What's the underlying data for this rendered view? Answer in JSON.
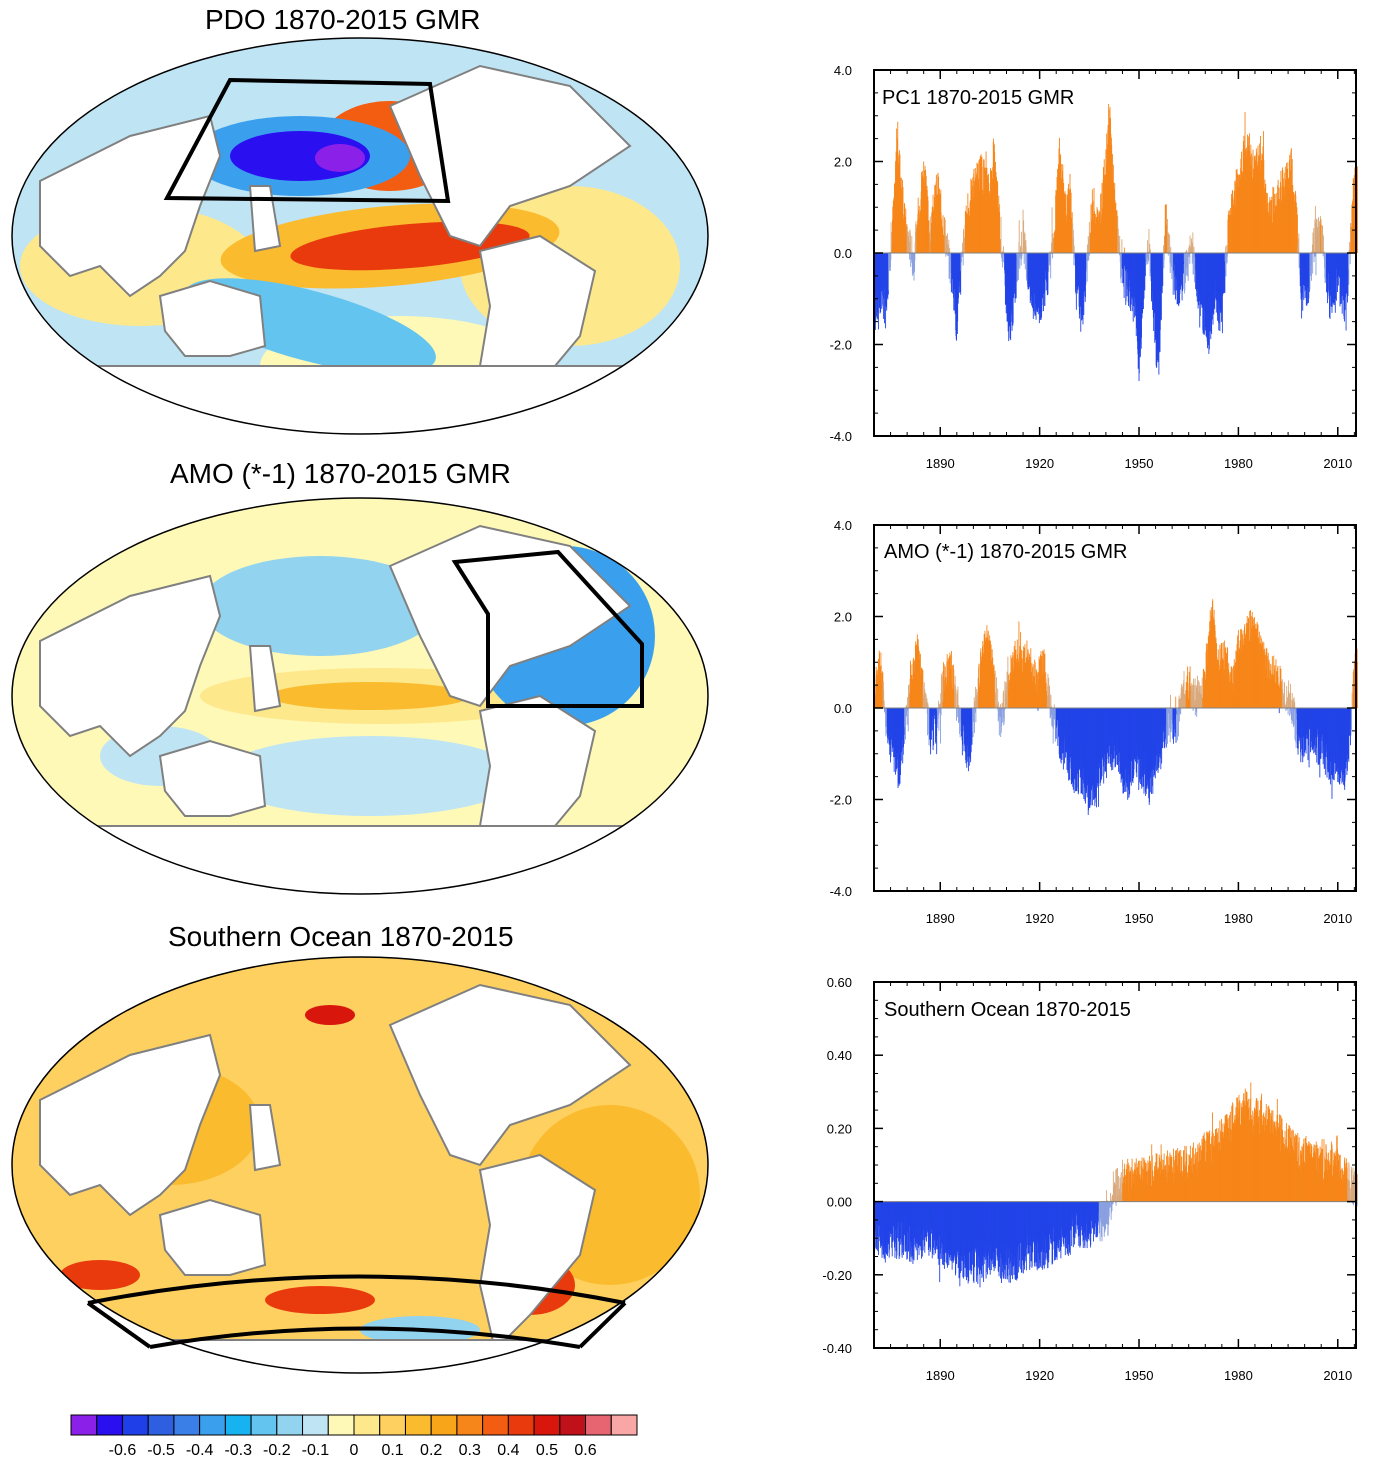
{
  "figure": {
    "maps": [
      {
        "title": "PDO 1870-2015 GMR",
        "region": "North Pacific box"
      },
      {
        "title": "AMO (*-1) 1870-2015 GMR",
        "region": "North Atlantic box"
      },
      {
        "title": "Southern Ocean 1870-2015",
        "region": "Southern Ocean band"
      }
    ],
    "colorbar": {
      "labels": [
        "-0.6",
        "-0.5",
        "-0.4",
        "-0.3",
        "-0.2",
        "-0.1",
        "0",
        "0.1",
        "0.2",
        "0.3",
        "0.4",
        "0.5",
        "0.6"
      ],
      "colors": [
        "#8b20e8",
        "#2a10f0",
        "#1f3fe8",
        "#2e5fe0",
        "#3a7ee8",
        "#3aa0ee",
        "#17b2f0",
        "#64c4f0",
        "#92d3f0",
        "#bfe4f4",
        "#fff9b8",
        "#fde88c",
        "#fdd060",
        "#fbbb2e",
        "#f9a51a",
        "#f7861a",
        "#f25d12",
        "#e93a0e",
        "#d8160c",
        "#c0101a",
        "#e76570",
        "#f8a6a6"
      ]
    },
    "colors": {
      "positive": "#f7861a",
      "negative": "#2244e8",
      "positive_thin": "#d9a97c",
      "negative_thin": "#8aa0e0",
      "land": "#ffffff",
      "coast": "#808080"
    }
  },
  "chart_data": [
    {
      "type": "bar",
      "title": "PC1 1870-2015 GMR",
      "x_start": 1870,
      "x_end": 2015,
      "step": "monthly",
      "xticks": [
        "1890",
        "1920",
        "1950",
        "1980",
        "2010"
      ],
      "yticks": [
        "4.0",
        "2.0",
        "0.0",
        "-2.0",
        "-4.0"
      ],
      "ylim": [
        -4.0,
        4.0
      ],
      "anchors": [
        [
          1870,
          -1.3
        ],
        [
          1874,
          -0.8
        ],
        [
          1876,
          1.0
        ],
        [
          1877,
          2.6
        ],
        [
          1879,
          0.8
        ],
        [
          1882,
          -0.2
        ],
        [
          1884,
          1.3
        ],
        [
          1885,
          1.8
        ],
        [
          1887,
          0.4
        ],
        [
          1889,
          1.5
        ],
        [
          1892,
          0.2
        ],
        [
          1894,
          -0.8
        ],
        [
          1895,
          -1.6
        ],
        [
          1897,
          0.2
        ],
        [
          1899,
          1.2
        ],
        [
          1902,
          1.8
        ],
        [
          1905,
          1.3
        ],
        [
          1906,
          2.2
        ],
        [
          1908,
          0.7
        ],
        [
          1910,
          -1.0
        ],
        [
          1911,
          -1.8
        ],
        [
          1913,
          -0.5
        ],
        [
          1915,
          0.4
        ],
        [
          1917,
          -0.9
        ],
        [
          1920,
          -1.2
        ],
        [
          1923,
          -0.4
        ],
        [
          1925,
          1.0
        ],
        [
          1926,
          2.2
        ],
        [
          1928,
          0.8
        ],
        [
          1929,
          1.5
        ],
        [
          1931,
          -0.8
        ],
        [
          1933,
          -1.2
        ],
        [
          1934,
          -0.6
        ],
        [
          1936,
          1.1
        ],
        [
          1938,
          0.6
        ],
        [
          1940,
          2.0
        ],
        [
          1941,
          3.0
        ],
        [
          1943,
          0.9
        ],
        [
          1945,
          -0.6
        ],
        [
          1947,
          -0.8
        ],
        [
          1949,
          -1.3
        ],
        [
          1950,
          -2.6
        ],
        [
          1951,
          -1.2
        ],
        [
          1953,
          0.2
        ],
        [
          1955,
          -2.0
        ],
        [
          1956,
          -2.3
        ],
        [
          1958,
          0.8
        ],
        [
          1960,
          -0.4
        ],
        [
          1962,
          -0.8
        ],
        [
          1964,
          -0.4
        ],
        [
          1966,
          0.2
        ],
        [
          1968,
          -1.2
        ],
        [
          1970,
          -1.4
        ],
        [
          1971,
          -1.9
        ],
        [
          1973,
          -0.9
        ],
        [
          1975,
          -1.6
        ],
        [
          1977,
          0.7
        ],
        [
          1979,
          1.3
        ],
        [
          1981,
          2.0
        ],
        [
          1983,
          2.4
        ],
        [
          1984,
          1.8
        ],
        [
          1986,
          2.0
        ],
        [
          1987,
          2.2
        ],
        [
          1989,
          0.8
        ],
        [
          1991,
          1.1
        ],
        [
          1993,
          1.4
        ],
        [
          1995,
          1.6
        ],
        [
          1996,
          1.9
        ],
        [
          1998,
          0.4
        ],
        [
          1999,
          -1.0
        ],
        [
          2001,
          -0.8
        ],
        [
          2003,
          0.3
        ],
        [
          2005,
          0.5
        ],
        [
          2007,
          -0.8
        ],
        [
          2008,
          -1.2
        ],
        [
          2010,
          -0.5
        ],
        [
          2012,
          -1.2
        ],
        [
          2013,
          -0.8
        ],
        [
          2014,
          0.5
        ],
        [
          2015,
          1.6
        ]
      ]
    },
    {
      "type": "bar",
      "title": "AMO (*-1) 1870-2015 GMR",
      "x_start": 1870,
      "x_end": 2015,
      "step": "monthly",
      "xticks": [
        "1890",
        "1920",
        "1950",
        "1980",
        "2010"
      ],
      "yticks": [
        "4.0",
        "2.0",
        "0.0",
        "-2.0",
        "-4.0"
      ],
      "ylim": [
        -4.0,
        4.0
      ],
      "anchors": [
        [
          1870,
          0.4
        ],
        [
          1872,
          1.0
        ],
        [
          1874,
          -0.5
        ],
        [
          1876,
          -1.0
        ],
        [
          1878,
          -1.4
        ],
        [
          1879,
          -0.6
        ],
        [
          1881,
          0.6
        ],
        [
          1883,
          1.3
        ],
        [
          1885,
          0.4
        ],
        [
          1887,
          -0.6
        ],
        [
          1889,
          -0.5
        ],
        [
          1891,
          0.6
        ],
        [
          1893,
          1.0
        ],
        [
          1895,
          0.2
        ],
        [
          1897,
          -0.8
        ],
        [
          1899,
          -1.0
        ],
        [
          1900,
          -0.3
        ],
        [
          1902,
          0.8
        ],
        [
          1904,
          1.6
        ],
        [
          1906,
          0.8
        ],
        [
          1908,
          -0.3
        ],
        [
          1910,
          0.3
        ],
        [
          1912,
          1.0
        ],
        [
          1914,
          1.2
        ],
        [
          1917,
          1.0
        ],
        [
          1919,
          0.6
        ],
        [
          1921,
          1.0
        ],
        [
          1923,
          0.2
        ],
        [
          1925,
          -0.5
        ],
        [
          1927,
          -0.9
        ],
        [
          1929,
          -1.2
        ],
        [
          1931,
          -1.6
        ],
        [
          1933,
          -1.5
        ],
        [
          1935,
          -2.0
        ],
        [
          1937,
          -1.8
        ],
        [
          1939,
          -1.3
        ],
        [
          1941,
          -1.0
        ],
        [
          1943,
          -0.9
        ],
        [
          1945,
          -1.5
        ],
        [
          1947,
          -1.6
        ],
        [
          1949,
          -1.0
        ],
        [
          1951,
          -1.4
        ],
        [
          1953,
          -1.7
        ],
        [
          1955,
          -1.3
        ],
        [
          1957,
          -0.8
        ],
        [
          1959,
          -0.3
        ],
        [
          1961,
          -0.6
        ],
        [
          1963,
          0.3
        ],
        [
          1965,
          0.6
        ],
        [
          1967,
          0.2
        ],
        [
          1969,
          0.4
        ],
        [
          1971,
          1.3
        ],
        [
          1972,
          2.2
        ],
        [
          1974,
          1.0
        ],
        [
          1976,
          1.1
        ],
        [
          1978,
          0.5
        ],
        [
          1980,
          1.3
        ],
        [
          1982,
          1.5
        ],
        [
          1984,
          1.8
        ],
        [
          1986,
          1.4
        ],
        [
          1988,
          1.0
        ],
        [
          1990,
          0.8
        ],
        [
          1992,
          0.6
        ],
        [
          1994,
          0.4
        ],
        [
          1996,
          0.1
        ],
        [
          1998,
          -0.6
        ],
        [
          2000,
          -1.0
        ],
        [
          2002,
          -0.6
        ],
        [
          2004,
          -0.8
        ],
        [
          2006,
          -1.0
        ],
        [
          2008,
          -1.3
        ],
        [
          2010,
          -1.2
        ],
        [
          2012,
          -1.4
        ],
        [
          2014,
          -0.6
        ],
        [
          2015,
          0.9
        ]
      ]
    },
    {
      "type": "bar",
      "title": "Southern Ocean 1870-2015",
      "x_start": 1870,
      "x_end": 2015,
      "step": "monthly",
      "xticks": [
        "1890",
        "1920",
        "1950",
        "1980",
        "2010"
      ],
      "yticks": [
        "0.60",
        "0.40",
        "0.20",
        "0.00",
        "-0.20",
        "-0.40"
      ],
      "ylim": [
        -0.4,
        0.6
      ],
      "anchors": [
        [
          1870,
          -0.08
        ],
        [
          1874,
          -0.12
        ],
        [
          1878,
          -0.1
        ],
        [
          1882,
          -0.12
        ],
        [
          1886,
          -0.1
        ],
        [
          1890,
          -0.12
        ],
        [
          1894,
          -0.15
        ],
        [
          1898,
          -0.17
        ],
        [
          1902,
          -0.17
        ],
        [
          1906,
          -0.15
        ],
        [
          1910,
          -0.17
        ],
        [
          1914,
          -0.16
        ],
        [
          1918,
          -0.14
        ],
        [
          1922,
          -0.13
        ],
        [
          1926,
          -0.11
        ],
        [
          1930,
          -0.09
        ],
        [
          1934,
          -0.08
        ],
        [
          1938,
          -0.06
        ],
        [
          1941,
          -0.04
        ],
        [
          1942,
          0.03
        ],
        [
          1945,
          0.06
        ],
        [
          1948,
          0.07
        ],
        [
          1952,
          0.07
        ],
        [
          1956,
          0.08
        ],
        [
          1960,
          0.09
        ],
        [
          1964,
          0.1
        ],
        [
          1968,
          0.12
        ],
        [
          1972,
          0.15
        ],
        [
          1976,
          0.18
        ],
        [
          1980,
          0.24
        ],
        [
          1982,
          0.26
        ],
        [
          1984,
          0.22
        ],
        [
          1987,
          0.24
        ],
        [
          1990,
          0.2
        ],
        [
          1993,
          0.18
        ],
        [
          1996,
          0.15
        ],
        [
          1999,
          0.13
        ],
        [
          2002,
          0.12
        ],
        [
          2005,
          0.1
        ],
        [
          2008,
          0.11
        ],
        [
          2011,
          0.08
        ],
        [
          2013,
          0.06
        ],
        [
          2015,
          0.04
        ]
      ]
    }
  ]
}
